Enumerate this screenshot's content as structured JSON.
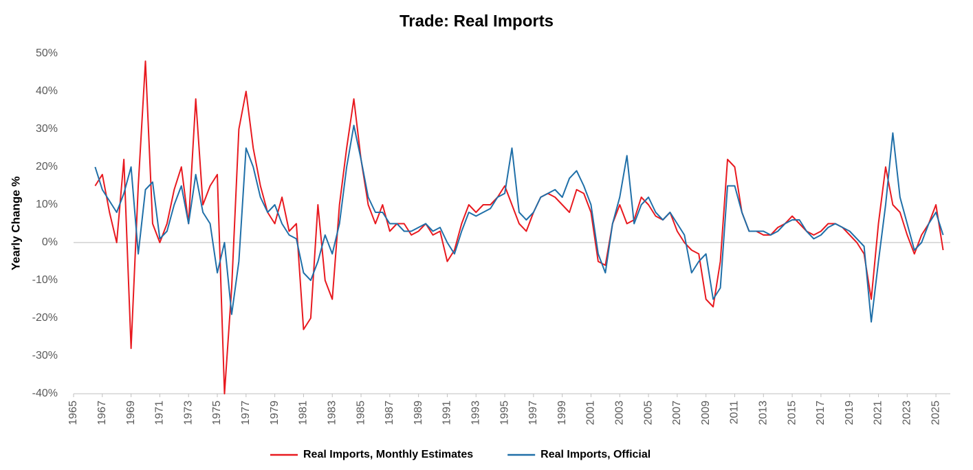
{
  "chart_data": {
    "type": "line",
    "title": "Trade: Real Imports",
    "y_label": "Yearly Change %",
    "xlim": [
      1965,
      2026
    ],
    "xticks": [
      1965,
      1967,
      1969,
      1971,
      1973,
      1975,
      1977,
      1979,
      1981,
      1983,
      1985,
      1987,
      1989,
      1991,
      1993,
      1995,
      1997,
      1999,
      2001,
      2003,
      2005,
      2007,
      2009,
      2011,
      2013,
      2015,
      2017,
      2019,
      2021,
      2023,
      2025
    ],
    "ylim": [
      -40,
      50
    ],
    "yticks": [
      {
        "value": -40,
        "label": "-40%"
      },
      {
        "value": -30,
        "label": "-30%"
      },
      {
        "value": -20,
        "label": "-20%"
      },
      {
        "value": -10,
        "label": "-10%"
      },
      {
        "value": 0,
        "label": "0%"
      },
      {
        "value": 10,
        "label": "10%"
      },
      {
        "value": 20,
        "label": "20%"
      },
      {
        "value": 30,
        "label": "30%"
      },
      {
        "value": 40,
        "label": "40%"
      },
      {
        "value": 50,
        "label": "50%"
      }
    ],
    "legend": "bottom",
    "x": [
      1966.5,
      1967,
      1967.5,
      1968,
      1968.5,
      1969,
      1969.5,
      1970,
      1970.5,
      1971,
      1971.5,
      1972,
      1972.5,
      1973,
      1973.5,
      1974,
      1974.5,
      1975,
      1975.5,
      1976,
      1976.5,
      1977,
      1977.5,
      1978,
      1978.5,
      1979,
      1979.5,
      1980,
      1980.5,
      1981,
      1981.5,
      1982,
      1982.5,
      1983,
      1983.5,
      1984,
      1984.5,
      1985,
      1985.5,
      1986,
      1986.5,
      1987,
      1987.5,
      1988,
      1988.5,
      1989,
      1989.5,
      1990,
      1990.5,
      1991,
      1991.5,
      1992,
      1992.5,
      1993,
      1993.5,
      1994,
      1994.5,
      1995,
      1995.5,
      1996,
      1996.5,
      1997,
      1997.5,
      1998,
      1998.5,
      1999,
      1999.5,
      2000,
      2000.5,
      2001,
      2001.5,
      2002,
      2002.5,
      2003,
      2003.5,
      2004,
      2004.5,
      2005,
      2005.5,
      2006,
      2006.5,
      2007,
      2007.5,
      2008,
      2008.5,
      2009,
      2009.5,
      2010,
      2010.5,
      2011,
      2011.5,
      2012,
      2012.5,
      2013,
      2013.5,
      2014,
      2014.5,
      2015,
      2015.5,
      2016,
      2016.5,
      2017,
      2017.5,
      2018,
      2018.5,
      2019,
      2019.5,
      2020,
      2020.5,
      2021,
      2021.5,
      2022,
      2022.5,
      2023,
      2023.5,
      2024,
      2024.5,
      2025,
      2025.5
    ],
    "series": [
      {
        "name": "Real Imports, Monthly Estimates",
        "color": "#e8191f",
        "values": [
          15,
          18,
          8,
          0,
          22,
          -28,
          15,
          48,
          5,
          0,
          5,
          14,
          20,
          5,
          38,
          10,
          15,
          18,
          -40,
          -12,
          30,
          40,
          25,
          15,
          8,
          5,
          12,
          3,
          5,
          -23,
          -20,
          10,
          -10,
          -15,
          10,
          25,
          38,
          22,
          10,
          5,
          10,
          3,
          5,
          5,
          2,
          3,
          5,
          2,
          3,
          -5,
          -2,
          5,
          10,
          8,
          10,
          10,
          12,
          15,
          10,
          5,
          3,
          8,
          12,
          13,
          12,
          10,
          8,
          14,
          13,
          8,
          -5,
          -6,
          5,
          10,
          5,
          6,
          12,
          10,
          7,
          6,
          8,
          3,
          0,
          -2,
          -3,
          -15,
          -17,
          -5,
          22,
          20,
          8,
          3,
          3,
          2,
          2,
          4,
          5,
          7,
          5,
          3,
          2,
          3,
          5,
          5,
          4,
          2,
          0,
          -3,
          -15,
          5,
          20,
          10,
          8,
          2,
          -3,
          2,
          5,
          10,
          -2
        ]
      },
      {
        "name": "Real Imports, Official",
        "color": "#1f6fa8",
        "values": [
          20,
          14,
          11,
          8,
          13,
          20,
          -3,
          14,
          16,
          1,
          3,
          10,
          15,
          5,
          18,
          8,
          5,
          -8,
          0,
          -19,
          -5,
          25,
          20,
          12,
          8,
          10,
          5,
          2,
          1,
          -8,
          -10,
          -5,
          2,
          -3,
          5,
          20,
          31,
          22,
          12,
          8,
          8,
          5,
          5,
          3,
          3,
          4,
          5,
          3,
          4,
          0,
          -3,
          3,
          8,
          7,
          8,
          9,
          12,
          13,
          25,
          8,
          6,
          8,
          12,
          13,
          14,
          12,
          17,
          19,
          15,
          10,
          -3,
          -8,
          5,
          12,
          23,
          5,
          10,
          12,
          8,
          6,
          8,
          5,
          2,
          -8,
          -5,
          -3,
          -15,
          -12,
          15,
          15,
          8,
          3,
          3,
          3,
          2,
          3,
          5,
          6,
          6,
          3,
          1,
          2,
          4,
          5,
          4,
          3,
          1,
          -1,
          -21,
          -5,
          10,
          29,
          12,
          5,
          -2,
          0,
          5,
          8,
          2
        ]
      }
    ]
  }
}
